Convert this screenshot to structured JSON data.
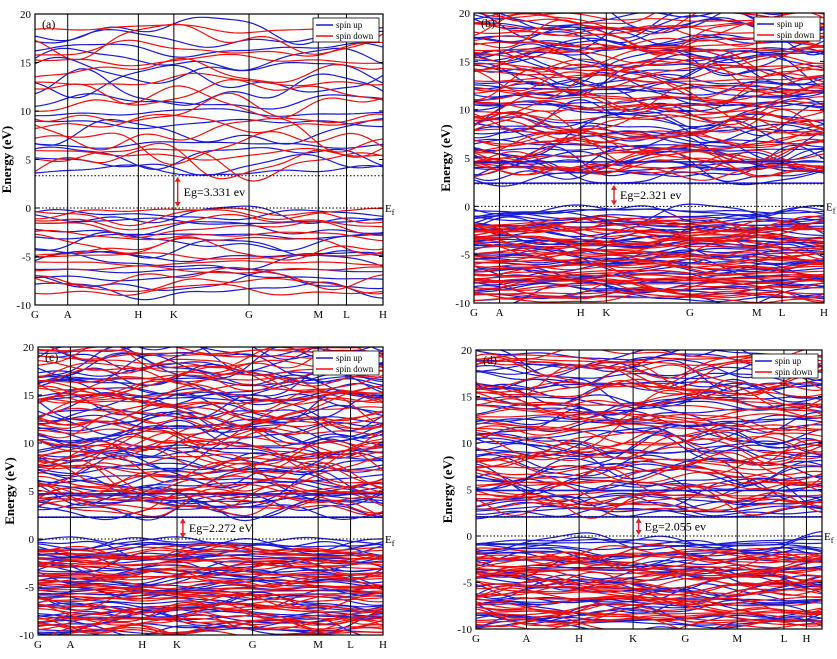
{
  "figure": {
    "colors": {
      "spin_up": "#1a1ad6",
      "spin_down": "#ee1111",
      "gap_arrow": "#dd2222",
      "axis": "#000000"
    }
  },
  "chart_data": [
    {
      "type": "line",
      "panel_label": "(a)",
      "ylabel": "Energy (eV)",
      "ylim": [
        -10,
        20
      ],
      "yticks": [
        -10,
        -5,
        0,
        5,
        10,
        15,
        20
      ],
      "k_points": [
        "G",
        "A",
        "H",
        "K",
        "G",
        "M",
        "L",
        "H"
      ],
      "k_positions": [
        0,
        0.094,
        0.297,
        0.399,
        0.615,
        0.814,
        0.895,
        1.0
      ],
      "legend": [
        "spin up",
        "spin down"
      ],
      "fermi_label": "Ef",
      "band_gap_label": "Eg=3.331 ev",
      "band_gap_eV": 3.331,
      "cbm_eV": 3.331,
      "vbm_eV": 0,
      "series": [
        {
          "name": "spin up",
          "bands_shown": 28,
          "vb_range_eV": [
            -8.5,
            0
          ],
          "cb_range_eV": [
            3.331,
            18.5
          ]
        },
        {
          "name": "spin down",
          "bands_shown": 28,
          "vb_range_eV": [
            -8.5,
            0
          ],
          "cb_range_eV": [
            3.331,
            18.5
          ]
        }
      ]
    },
    {
      "type": "line",
      "panel_label": "(b)",
      "ylabel": "Energy (eV)",
      "ylim": [
        -10,
        20
      ],
      "yticks": [
        -10,
        -5,
        0,
        5,
        10,
        15,
        20
      ],
      "k_points": [
        "G",
        "A",
        "H",
        "K",
        "G",
        "M",
        "L",
        "H"
      ],
      "k_positions": [
        0,
        0.073,
        0.305,
        0.378,
        0.617,
        0.808,
        0.88,
        1.0
      ],
      "legend": [
        "spin up",
        "spin down"
      ],
      "fermi_label": "Ef",
      "band_gap_label": "Eg=2.321 ev",
      "band_gap_eV": 2.321,
      "defect_levels_eV": [
        2.4,
        4.6
      ],
      "series": [
        {
          "name": "spin up",
          "bands_shown": 90,
          "vb_range_eV": [
            -9.5,
            0
          ],
          "cb_range_eV": [
            2.4,
            19.8
          ]
        },
        {
          "name": "spin down",
          "bands_shown": 90,
          "vb_range_eV": [
            -9.5,
            -1.3
          ],
          "cb_range_eV": [
            3.0,
            19.8
          ]
        }
      ]
    },
    {
      "type": "line",
      "panel_label": "(c)",
      "ylabel": "Energy (eV)",
      "ylim": [
        -10,
        20
      ],
      "yticks": [
        -10,
        -5,
        0,
        5,
        10,
        15,
        20
      ],
      "k_points": [
        "G",
        "A",
        "H",
        "K",
        "G",
        "M",
        "L",
        "H"
      ],
      "k_positions": [
        0,
        0.094,
        0.302,
        0.403,
        0.622,
        0.812,
        0.906,
        1.0
      ],
      "legend": [
        "spin up",
        "spin down"
      ],
      "fermi_label": "Ef",
      "band_gap_label": "Eg=2.272 eV",
      "band_gap_eV": 2.272,
      "defect_levels_eV": [
        2.27,
        4.7
      ],
      "series": [
        {
          "name": "spin up",
          "bands_shown": 90,
          "vb_range_eV": [
            -9.8,
            0
          ],
          "cb_range_eV": [
            2.27,
            19.8
          ]
        },
        {
          "name": "spin down",
          "bands_shown": 90,
          "vb_range_eV": [
            -9.8,
            -0.7
          ],
          "cb_range_eV": [
            2.6,
            19.8
          ]
        }
      ]
    },
    {
      "type": "line",
      "panel_label": "(d)",
      "ylabel": "Energy (eV)",
      "ylim": [
        -10,
        20
      ],
      "yticks": [
        -10,
        -5,
        0,
        5,
        10,
        15,
        20
      ],
      "k_points": [
        "G",
        "A",
        "H",
        "K",
        "G",
        "M",
        "L",
        "H"
      ],
      "k_positions": [
        0,
        0.146,
        0.298,
        0.454,
        0.605,
        0.755,
        0.89,
        0.955
      ],
      "legend": [
        "spin up",
        "spin down"
      ],
      "fermi_label": "Ef",
      "band_gap_label": "Eg=2.055 ev",
      "band_gap_eV": 2.055,
      "defect_levels_eV": [
        2.05,
        4.9
      ],
      "series": [
        {
          "name": "spin up",
          "bands_shown": 80,
          "vb_range_eV": [
            -9.7,
            0
          ],
          "cb_range_eV": [
            2.05,
            19.5
          ]
        },
        {
          "name": "spin down",
          "bands_shown": 80,
          "vb_range_eV": [
            -9.7,
            -1.4
          ],
          "cb_range_eV": [
            2.5,
            19.5
          ]
        }
      ]
    }
  ]
}
